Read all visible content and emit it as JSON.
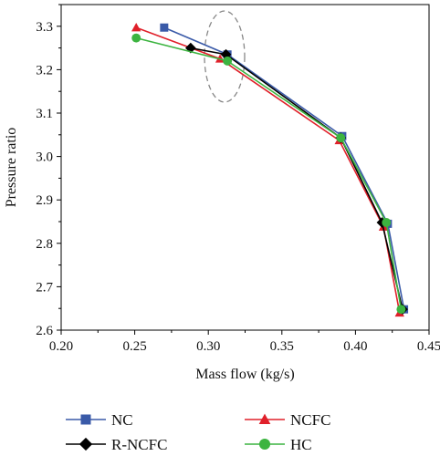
{
  "chart_data": {
    "type": "line",
    "title": "",
    "xlabel": "Mass flow (kg/s)",
    "ylabel": "Pressure ratio",
    "xlim": [
      0.2,
      0.45
    ],
    "ylim": [
      2.6,
      3.35
    ],
    "xticks": [
      "0.20",
      "0.25",
      "0.30",
      "0.35",
      "0.40",
      "0.45"
    ],
    "yticks": [
      "2.6",
      "2.7",
      "2.8",
      "2.9",
      "3.0",
      "3.1",
      "3.2",
      "3.3"
    ],
    "grid": false,
    "legend_position": "bottom",
    "annotation": "dashed ellipse highlighting the points near mass flow 0.31",
    "series": [
      {
        "name": "NC",
        "color": "#3a5aa8",
        "marker": "square",
        "x": [
          0.27,
          0.313,
          0.391,
          0.422,
          0.433
        ],
        "y": [
          3.297,
          3.235,
          3.047,
          2.845,
          2.648
        ]
      },
      {
        "name": "NCFC",
        "color": "#e0202a",
        "marker": "triangle",
        "x": [
          0.251,
          0.308,
          0.389,
          0.419,
          0.43
        ],
        "y": [
          3.297,
          3.225,
          3.037,
          2.838,
          2.64
        ]
      },
      {
        "name": "R-NCFC",
        "color": "#000000",
        "marker": "diamond",
        "x": [
          0.288,
          0.312,
          0.39,
          0.418,
          0.432
        ],
        "y": [
          3.25,
          3.235,
          3.043,
          2.848,
          2.648
        ]
      },
      {
        "name": "HC",
        "color": "#3cb440",
        "marker": "circle",
        "x": [
          0.251,
          0.313,
          0.39,
          0.421,
          0.431
        ],
        "y": [
          3.273,
          3.22,
          3.043,
          2.848,
          2.648
        ]
      }
    ]
  }
}
